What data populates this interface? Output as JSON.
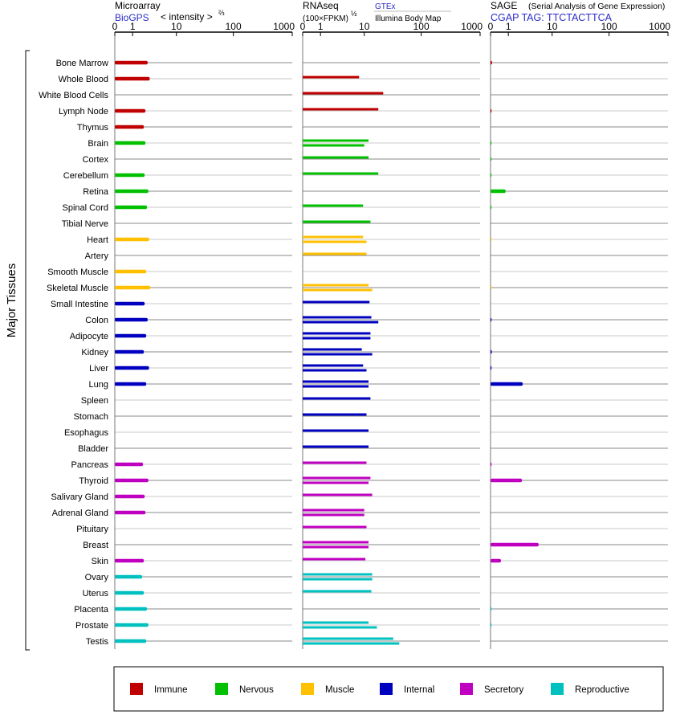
{
  "headers": {
    "microarray": {
      "title": "Microarray",
      "source": "BioGPS",
      "scale": "< intensity >",
      "exponent": "⅔"
    },
    "rnaseq": {
      "title": "RNAseq",
      "unit": "(100×FPKM)",
      "exponent": "½",
      "source1": "GTEx",
      "source2": "Illumina Body Map"
    },
    "sage": {
      "title": "SAGE",
      "subtitle": "(Serial Analysis of Gene Expression)",
      "tag": "CGAP TAG: TTCTACTTCA"
    }
  },
  "ylabel": "Major Tissues",
  "colors": {
    "Immune": "#c00000",
    "Nervous": "#00c000",
    "Muscle": "#ffc000",
    "Internal": "#0000c0",
    "Secretory": "#c000c0",
    "Reproductive": "#00c0c0"
  },
  "legend": [
    {
      "label": "Immune",
      "color": "#c00000"
    },
    {
      "label": "Nervous",
      "color": "#00c000"
    },
    {
      "label": "Muscle",
      "color": "#ffc000"
    },
    {
      "label": "Internal",
      "color": "#0000c0"
    },
    {
      "label": "Secretory",
      "color": "#c000c0"
    },
    {
      "label": "Reproductive",
      "color": "#00c0c0"
    }
  ],
  "chart_data": [
    {
      "type": "bar",
      "panel": "Microarray",
      "ticks": [
        "0",
        "1",
        "10",
        "100",
        "1000"
      ],
      "xlim": [
        0,
        1000
      ],
      "categories": [
        "Bone Marrow",
        "Whole Blood",
        "White Blood Cells",
        "Lymph Node",
        "Thymus",
        "Brain",
        "Cortex",
        "Cerebellum",
        "Retina",
        "Spinal Cord",
        "Tibial Nerve",
        "Heart",
        "Artery",
        "Smooth Muscle",
        "Skeletal Muscle",
        "Small Intestine",
        "Colon",
        "Adipocyte",
        "Kidney",
        "Liver",
        "Lung",
        "Spleen",
        "Stomach",
        "Esophagus",
        "Bladder",
        "Pancreas",
        "Thyroid",
        "Salivary Gland",
        "Adrenal Gland",
        "Pituitary",
        "Breast",
        "Skin",
        "Ovary",
        "Uterus",
        "Placenta",
        "Prostate",
        "Testis"
      ],
      "groups": [
        "Immune",
        "Immune",
        "Immune",
        "Immune",
        "Immune",
        "Nervous",
        "Nervous",
        "Nervous",
        "Nervous",
        "Nervous",
        "Nervous",
        "Muscle",
        "Muscle",
        "Muscle",
        "Muscle",
        "Internal",
        "Internal",
        "Internal",
        "Internal",
        "Internal",
        "Internal",
        "Internal",
        "Internal",
        "Internal",
        "Internal",
        "Secretory",
        "Secretory",
        "Secretory",
        "Secretory",
        "Secretory",
        "Secretory",
        "Secretory",
        "Reproductive",
        "Reproductive",
        "Reproductive",
        "Reproductive",
        "Reproductive"
      ],
      "values": [
        [
          2.6
        ],
        [
          2.9
        ],
        [],
        [
          2.3
        ],
        [
          2.1
        ],
        [
          2.3
        ],
        [],
        [
          2.2
        ],
        [
          2.7
        ],
        [
          2.5
        ],
        [],
        [
          2.8
        ],
        [],
        [
          2.4
        ],
        [
          3.0
        ],
        [
          2.2
        ],
        [
          2.6
        ],
        [
          2.4
        ],
        [
          2.1
        ],
        [
          2.8
        ],
        [
          2.4
        ],
        [],
        [],
        [],
        [],
        [
          2.0
        ],
        [
          2.7
        ],
        [
          2.2
        ],
        [
          2.3
        ],
        [],
        [],
        [
          2.1
        ],
        [
          1.9
        ],
        [
          2.1
        ],
        [
          2.5
        ],
        [
          2.7
        ],
        [
          2.4
        ]
      ]
    },
    {
      "type": "bar",
      "panel": "RNAseq",
      "ticks": [
        "0",
        "1",
        "10",
        "100",
        "1000"
      ],
      "xlim": [
        0,
        1000
      ],
      "categories": [
        "Bone Marrow",
        "Whole Blood",
        "White Blood Cells",
        "Lymph Node",
        "Thymus",
        "Brain",
        "Cortex",
        "Cerebellum",
        "Retina",
        "Spinal Cord",
        "Tibial Nerve",
        "Heart",
        "Artery",
        "Smooth Muscle",
        "Skeletal Muscle",
        "Small Intestine",
        "Colon",
        "Adipocyte",
        "Kidney",
        "Liver",
        "Lung",
        "Spleen",
        "Stomach",
        "Esophagus",
        "Bladder",
        "Pancreas",
        "Thyroid",
        "Salivary Gland",
        "Adrenal Gland",
        "Pituitary",
        "Breast",
        "Skin",
        "Ovary",
        "Uterus",
        "Placenta",
        "Prostate",
        "Testis"
      ],
      "groups": [
        "Immune",
        "Immune",
        "Immune",
        "Immune",
        "Immune",
        "Nervous",
        "Nervous",
        "Nervous",
        "Nervous",
        "Nervous",
        "Nervous",
        "Muscle",
        "Muscle",
        "Muscle",
        "Muscle",
        "Internal",
        "Internal",
        "Internal",
        "Internal",
        "Internal",
        "Internal",
        "Internal",
        "Internal",
        "Internal",
        "Internal",
        "Secretory",
        "Secretory",
        "Secretory",
        "Secretory",
        "Secretory",
        "Secretory",
        "Secretory",
        "Reproductive",
        "Reproductive",
        "Reproductive",
        "Reproductive",
        "Reproductive"
      ],
      "values": [
        [],
        [
          8
        ],
        [
          22
        ],
        [
          18
        ],
        [],
        [
          12,
          10
        ],
        [
          12
        ],
        [
          18
        ],
        [],
        [
          9.5
        ],
        [
          13
        ],
        [
          9.5,
          11
        ],
        [
          11
        ],
        [],
        [
          12,
          14
        ],
        [
          12.5
        ],
        [
          13.5,
          18
        ],
        [
          13,
          13
        ],
        [
          9,
          14
        ],
        [
          9.5,
          11
        ],
        [
          12,
          12
        ],
        [
          13
        ],
        [
          11
        ],
        [
          12
        ],
        [
          12
        ],
        [
          11
        ],
        [
          13,
          12
        ],
        [
          14
        ],
        [
          10,
          10
        ],
        [
          11
        ],
        [
          12,
          12
        ],
        [
          10.5
        ],
        [
          14,
          14
        ],
        [
          13.5
        ],
        [],
        [
          12,
          17
        ],
        [
          33,
          42
        ]
      ]
    },
    {
      "type": "bar",
      "panel": "SAGE",
      "ticks": [
        "0",
        "1",
        "10",
        "100",
        "1000"
      ],
      "xlim": [
        0,
        1000
      ],
      "categories": [
        "Bone Marrow",
        "Whole Blood",
        "White Blood Cells",
        "Lymph Node",
        "Thymus",
        "Brain",
        "Cortex",
        "Cerebellum",
        "Retina",
        "Spinal Cord",
        "Tibial Nerve",
        "Heart",
        "Artery",
        "Smooth Muscle",
        "Skeletal Muscle",
        "Small Intestine",
        "Colon",
        "Adipocyte",
        "Kidney",
        "Liver",
        "Lung",
        "Spleen",
        "Stomach",
        "Esophagus",
        "Bladder",
        "Pancreas",
        "Thyroid",
        "Salivary Gland",
        "Adrenal Gland",
        "Pituitary",
        "Breast",
        "Skin",
        "Ovary",
        "Uterus",
        "Placenta",
        "Prostate",
        "Testis"
      ],
      "groups": [
        "Immune",
        "Immune",
        "Immune",
        "Immune",
        "Immune",
        "Nervous",
        "Nervous",
        "Nervous",
        "Nervous",
        "Nervous",
        "Nervous",
        "Muscle",
        "Muscle",
        "Muscle",
        "Muscle",
        "Internal",
        "Internal",
        "Internal",
        "Internal",
        "Internal",
        "Internal",
        "Internal",
        "Internal",
        "Internal",
        "Internal",
        "Secretory",
        "Secretory",
        "Secretory",
        "Secretory",
        "Secretory",
        "Secretory",
        "Secretory",
        "Reproductive",
        "Reproductive",
        "Reproductive",
        "Reproductive",
        "Reproductive"
      ],
      "values": [
        [
          0.06
        ],
        [],
        [],
        [
          0.04
        ],
        [],
        [
          0.03
        ],
        [
          0.03
        ],
        [
          0.03
        ],
        [
          0.8
        ],
        [
          0.03
        ],
        [],
        [
          0.02
        ],
        [],
        [],
        [
          0.02
        ],
        [],
        [
          0.04
        ],
        [],
        [
          0.05
        ],
        [
          0.04
        ],
        [
          2.5
        ],
        [],
        [],
        [],
        [],
        [
          0.04
        ],
        [
          2.4
        ],
        [],
        [],
        [],
        [
          5.5
        ],
        [
          0.5
        ],
        [],
        [],
        [
          0.03
        ],
        [
          0.03
        ],
        []
      ]
    }
  ]
}
